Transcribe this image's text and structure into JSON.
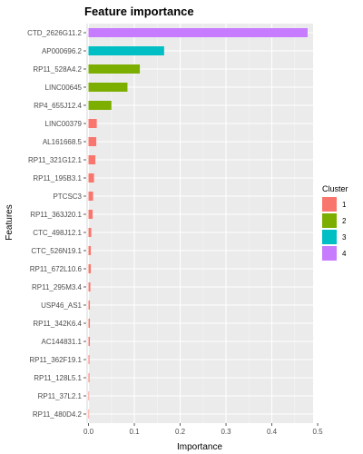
{
  "chart_data": {
    "type": "bar",
    "orientation": "horizontal",
    "title": "Feature importance",
    "xlabel": "Importance",
    "ylabel": "Features",
    "xlim": [
      -0.005,
      0.49
    ],
    "x_ticks": [
      "0.0",
      "0.1",
      "0.2",
      "0.3",
      "0.4",
      "0.5"
    ],
    "x_tick_values": [
      0.0,
      0.1,
      0.2,
      0.3,
      0.4,
      0.5
    ],
    "grid": true,
    "legend_position": "right",
    "legend": {
      "title": "Cluster",
      "entries": [
        {
          "label": "1",
          "color": "#F8766D"
        },
        {
          "label": "2",
          "color": "#7CAE00"
        },
        {
          "label": "3",
          "color": "#00BFC4"
        },
        {
          "label": "4",
          "color": "#C77CFF"
        }
      ]
    },
    "categories": [
      "CTD_2626G11.2",
      "AP000696.2",
      "RP11_528A4.2",
      "LINC00645",
      "RP4_655J12.4",
      "LINC00379",
      "AL161668.5",
      "RP11_321G12.1",
      "RP11_195B3.1",
      "PTCSC3",
      "RP11_363J20.1",
      "CTC_498J12.1",
      "CTC_526N19.1",
      "RP11_672L10.6",
      "RP11_295M3.4",
      "USP46_AS1",
      "RP11_342K6.4",
      "AC144831.1",
      "RP11_362F19.1",
      "RP11_128L5.1",
      "RP11_37L2.1",
      "RP11_480D4.2"
    ],
    "values": [
      0.478,
      0.165,
      0.112,
      0.085,
      0.05,
      0.018,
      0.017,
      0.015,
      0.012,
      0.01,
      0.009,
      0.006,
      0.005,
      0.005,
      0.004,
      0.003,
      0.003,
      0.003,
      0.002,
      0.002,
      0.001,
      0.0
    ],
    "clusters": [
      "4",
      "3",
      "2",
      "2",
      "2",
      "1",
      "1",
      "1",
      "1",
      "1",
      "1",
      "1",
      "1",
      "1",
      "1",
      "1",
      "1",
      "1",
      "1",
      "1",
      "1",
      "1"
    ]
  }
}
